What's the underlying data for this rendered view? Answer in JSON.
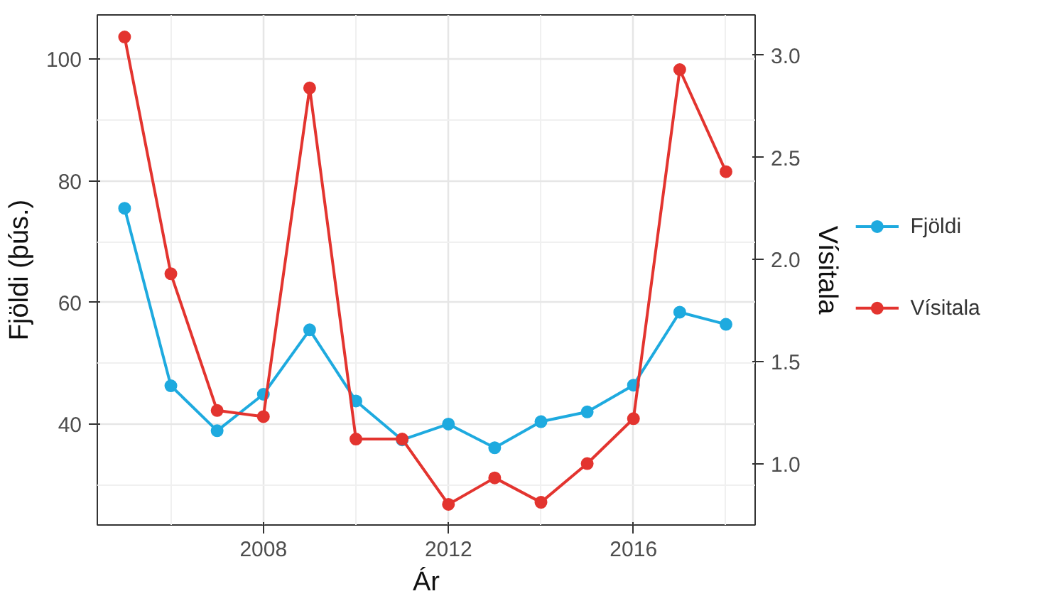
{
  "chart_data": {
    "type": "line",
    "xlabel": "Ár",
    "ylabel": "Fjöldi (þús.)",
    "y2label": "Vísitala",
    "x": [
      2005,
      2006,
      2007,
      2008,
      2009,
      2010,
      2011,
      2012,
      2013,
      2014,
      2015,
      2016,
      2017,
      2018
    ],
    "series": [
      {
        "name": "Fjöldi",
        "color": "#1eaadf",
        "values": [
          75.5,
          46.3,
          38.9,
          44.9,
          55.5,
          43.8,
          37.4,
          40.0,
          36.1,
          40.4,
          42.0,
          46.4,
          58.4,
          56.4
        ]
      },
      {
        "name": "Vísitala",
        "color": "#e3342f",
        "axis": "y2",
        "values": [
          3.09,
          1.93,
          1.26,
          1.23,
          2.84,
          1.12,
          1.12,
          0.8,
          0.93,
          0.81,
          1.0,
          1.22,
          2.93,
          2.43
        ]
      }
    ],
    "xlim": [
      2004.41,
      2018.63
    ],
    "xticks": [
      2008,
      2012,
      2016
    ],
    "ylim": [
      23.4,
      107.3
    ],
    "yticks": [
      40,
      60,
      80,
      100
    ],
    "y2lim": [
      0.699,
      3.198
    ],
    "y2ticks": [
      {
        "value": 1,
        "label": "1.0"
      },
      {
        "value": 1.5,
        "label": "1.5"
      },
      {
        "value": 2,
        "label": "2.0"
      },
      {
        "value": 2.5,
        "label": "2.5"
      },
      {
        "value": 3,
        "label": "3.0"
      }
    ],
    "grid": true,
    "legend": "right",
    "marker": "circle",
    "line_style": "solid"
  }
}
